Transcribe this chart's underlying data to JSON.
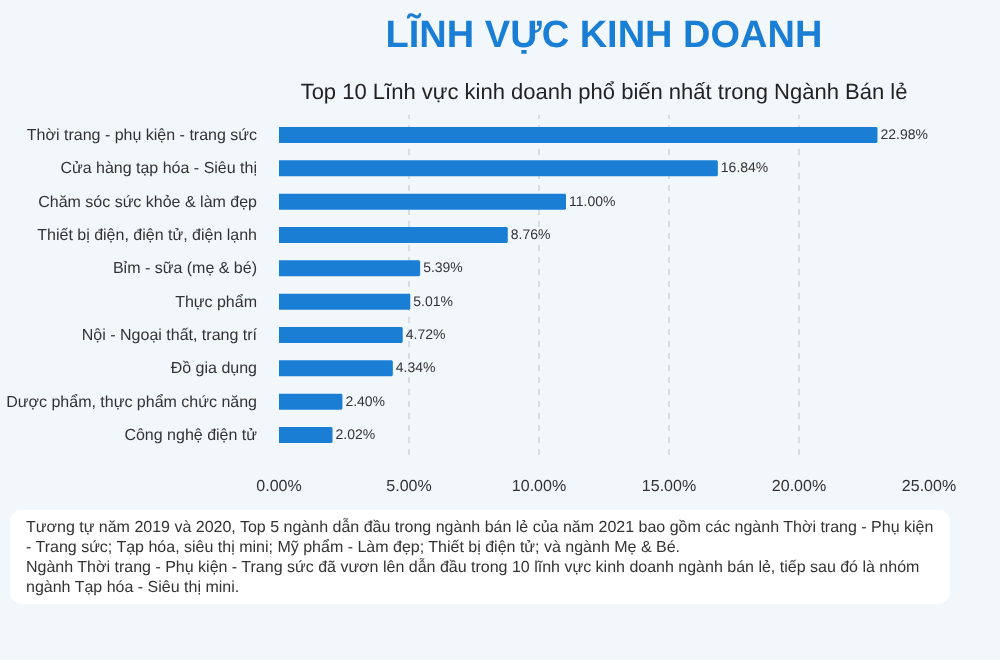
{
  "chart_data": {
    "type": "bar",
    "orientation": "horizontal",
    "title": "LĨNH VỰC KINH DOANH",
    "subtitle": "Top 10 Lĩnh vực kinh doanh phổ biến nhất trong Ngành Bán lẻ",
    "categories": [
      "Thời trang - phụ kiện - trang sức",
      "Cửa hàng tạp hóa - Siêu thị",
      "Chăm sóc sức khỏe & làm đẹp",
      "Thiết bị điện, điện tử, điện lạnh",
      "Bỉm - sữa (mẹ & bé)",
      "Thực phẩm",
      "Nội - Ngoại thất, trang trí",
      "Đồ gia dụng",
      "Dược phẩm, thực phẩm chức năng",
      "Công nghệ điện tử"
    ],
    "values": [
      22.98,
      16.84,
      11.0,
      8.76,
      5.39,
      5.01,
      4.72,
      4.34,
      2.4,
      2.02
    ],
    "value_labels": [
      "22.98%",
      "16.84%",
      "11.00%",
      "8.76%",
      "5.39%",
      "5.01%",
      "4.72%",
      "4.34%",
      "2.40%",
      "2.02%"
    ],
    "color": "#1a7fd4",
    "xlim": [
      0,
      25
    ],
    "xticks": [
      {
        "value": 0,
        "label": "0.00%"
      },
      {
        "value": 5,
        "label": "5.00%"
      },
      {
        "value": 10,
        "label": "10.00%"
      },
      {
        "value": 15,
        "label": "15.00%"
      },
      {
        "value": 20,
        "label": "20.00%"
      },
      {
        "value": 25,
        "label": "25.00%"
      }
    ],
    "grid": "x",
    "annotations": [
      "Tương tự năm 2019 và 2020, Top 5 ngành dẫn đầu trong ngành bán lẻ của năm 2021 bao gồm các ngành Thời trang - Phụ kiện - Trang sức; Tạp hóa, siêu thị mini; Mỹ phẩm - Làm đẹp; Thiết bị điện tử; và ngành Mẹ & Bé.",
      "Ngành Thời trang - Phụ kiện - Trang sức đã vươn lên dẫn đầu trong 10 lĩnh vực kinh doanh ngành bán lẻ, tiếp sau đó là nhóm ngành Tạp hóa - Siêu thị mini."
    ]
  }
}
